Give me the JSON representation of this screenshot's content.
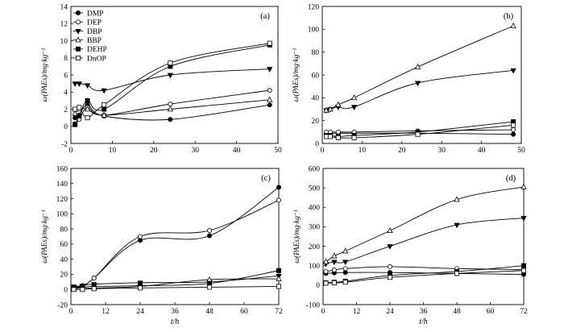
{
  "legend": {
    "entries": [
      {
        "name": "DMP",
        "marker": "circle-filled"
      },
      {
        "name": "DEP",
        "marker": "circle-open"
      },
      {
        "name": "DBP",
        "marker": "triangle-down-filled"
      },
      {
        "name": "BBP",
        "marker": "triangle-up-open"
      },
      {
        "name": "DEHP",
        "marker": "square-filled"
      },
      {
        "name": "DnOP",
        "marker": "square-open"
      }
    ]
  },
  "chart_data": [
    {
      "panel": "(a)",
      "type": "line",
      "ylabel": "ω(PAEs)/mg·kg⁻¹",
      "xlabel": "",
      "xlim": [
        0,
        50
      ],
      "ylim": [
        -2,
        14
      ],
      "xticks": [
        0,
        10,
        20,
        30,
        40,
        50
      ],
      "yticks": [
        -2,
        0,
        2,
        4,
        6,
        8,
        10,
        12,
        14
      ],
      "x": [
        1,
        2,
        4,
        8,
        24,
        48
      ],
      "series": [
        {
          "name": "DMP",
          "values": [
            1.0,
            1.3,
            2.5,
            1.2,
            0.8,
            2.5
          ]
        },
        {
          "name": "DEP",
          "values": [
            0.3,
            0.8,
            2.2,
            1.3,
            2.6,
            4.2
          ]
        },
        {
          "name": "DBP",
          "values": [
            5.0,
            5.0,
            4.8,
            4.2,
            6.0,
            6.7
          ]
        },
        {
          "name": "BBP",
          "values": [
            1.5,
            2.0,
            2.0,
            1.3,
            2.0,
            3.1
          ]
        },
        {
          "name": "DEHP",
          "values": [
            0.2,
            1.2,
            3.0,
            2.0,
            7.0,
            9.5
          ]
        },
        {
          "name": "DnOP",
          "values": [
            2.0,
            2.2,
            1.0,
            2.5,
            7.4,
            9.7
          ]
        }
      ]
    },
    {
      "panel": "(b)",
      "type": "line",
      "ylabel": "ω(PAEs)/mg·kg⁻¹",
      "xlabel": "",
      "xlim": [
        0,
        50
      ],
      "ylim": [
        0,
        120
      ],
      "xticks": [
        0,
        10,
        20,
        30,
        40,
        50
      ],
      "yticks": [
        0,
        20,
        40,
        60,
        80,
        100,
        120
      ],
      "x": [
        1,
        2,
        4,
        8,
        24,
        48
      ],
      "series": [
        {
          "name": "DMP",
          "values": [
            9,
            9,
            9,
            9,
            9,
            8
          ]
        },
        {
          "name": "DEP",
          "values": [
            10,
            10,
            10,
            10,
            11,
            12
          ]
        },
        {
          "name": "DBP",
          "values": [
            29,
            30,
            32,
            32,
            53,
            64
          ]
        },
        {
          "name": "BBP",
          "values": [
            29,
            30,
            34,
            40,
            67,
            103
          ]
        },
        {
          "name": "DEHP",
          "values": [
            7,
            7,
            6,
            7,
            10,
            19
          ]
        },
        {
          "name": "DnOP",
          "values": [
            6,
            6,
            5,
            5,
            8,
            16
          ]
        }
      ]
    },
    {
      "panel": "(c)",
      "type": "line",
      "ylabel": "ω(PAEs)/mg·kg⁻¹",
      "xlabel": "t/h",
      "xlim": [
        0,
        72
      ],
      "ylim": [
        -20,
        160
      ],
      "xticks": [
        0,
        12,
        24,
        36,
        48,
        60,
        72
      ],
      "yticks": [
        -20,
        0,
        20,
        40,
        60,
        80,
        100,
        120,
        140,
        160
      ],
      "x": [
        1,
        4,
        8,
        24,
        48,
        72
      ],
      "series": [
        {
          "name": "DMP",
          "values": [
            2,
            4,
            15,
            65,
            71,
            135
          ]
        },
        {
          "name": "DEP",
          "values": [
            3,
            5,
            15,
            70,
            78,
            118
          ]
        },
        {
          "name": "DBP",
          "values": [
            4,
            5,
            7,
            9,
            10,
            18
          ]
        },
        {
          "name": "BBP",
          "values": [
            1,
            2,
            2,
            4,
            13,
            14
          ]
        },
        {
          "name": "DEHP",
          "values": [
            2,
            3,
            4,
            5,
            8,
            25
          ]
        },
        {
          "name": "DnOP",
          "values": [
            0,
            0,
            1,
            2,
            3,
            4
          ]
        }
      ]
    },
    {
      "panel": "(d)",
      "type": "line",
      "ylabel": "ω(PAEs)/mg·kg⁻¹",
      "xlabel": "t/h",
      "xlim": [
        0,
        72
      ],
      "ylim": [
        -100,
        600
      ],
      "xticks": [
        0,
        12,
        24,
        36,
        48,
        60,
        72
      ],
      "yticks": [
        -100,
        0,
        100,
        200,
        300,
        400,
        500,
        600
      ],
      "x": [
        1,
        4,
        8,
        24,
        48,
        72
      ],
      "series": [
        {
          "name": "DMP",
          "values": [
            60,
            63,
            65,
            65,
            60,
            55
          ]
        },
        {
          "name": "DEP",
          "values": [
            70,
            78,
            85,
            95,
            85,
            80
          ]
        },
        {
          "name": "DBP",
          "values": [
            110,
            120,
            120,
            200,
            310,
            345
          ]
        },
        {
          "name": "BBP",
          "values": [
            120,
            150,
            175,
            280,
            440,
            505
          ]
        },
        {
          "name": "DEHP",
          "values": [
            12,
            15,
            20,
            50,
            70,
            100
          ]
        },
        {
          "name": "DnOP",
          "values": [
            10,
            12,
            15,
            40,
            60,
            75
          ]
        }
      ]
    }
  ]
}
